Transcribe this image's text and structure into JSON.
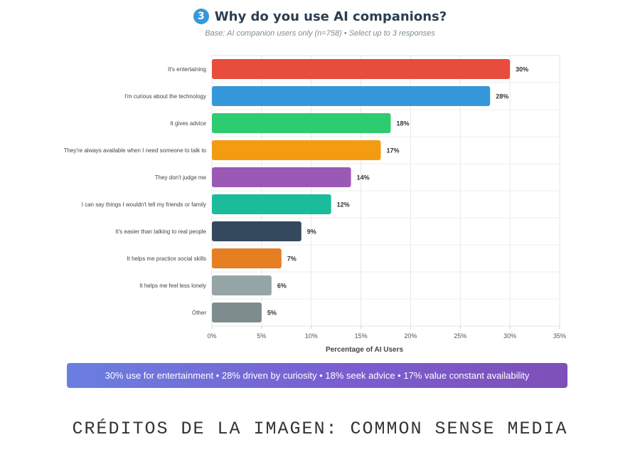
{
  "header": {
    "badge": "3",
    "title": "Why do you use AI companions?",
    "subtitle": "Base: AI companion users only (n=758) • Select up to 3 responses"
  },
  "chart_data": {
    "type": "bar",
    "orientation": "horizontal",
    "categories": [
      "It's entertaining",
      "I'm curious about the technology",
      "It gives advice",
      "They're always available when I need someone to talk to",
      "They don't judge me",
      "I can say things I wouldn't tell my friends or family",
      "It's easier than talking to real people",
      "It helps me practice social skills",
      "It helps me feel less lonely",
      "Other"
    ],
    "values": [
      30,
      28,
      18,
      17,
      14,
      12,
      9,
      7,
      6,
      5
    ],
    "value_labels": [
      "30%",
      "28%",
      "18%",
      "17%",
      "14%",
      "12%",
      "9%",
      "7%",
      "6%",
      "5%"
    ],
    "colors": [
      "#e74c3c",
      "#3498db",
      "#2ecc71",
      "#f39c12",
      "#9b59b6",
      "#1abc9c",
      "#34495e",
      "#e67e22",
      "#95a5a6",
      "#7f8c8d"
    ],
    "xlabel": "Percentage of AI Users",
    "xlim": [
      0,
      35
    ],
    "xticks": [
      0,
      5,
      10,
      15,
      20,
      25,
      30,
      35
    ],
    "xtick_labels": [
      "0%",
      "5%",
      "10%",
      "15%",
      "20%",
      "25%",
      "30%",
      "35%"
    ],
    "grid": true
  },
  "summary": "30% use for entertainment • 28% driven by curiosity • 18% seek advice • 17% value constant availability",
  "credits": "CRÉDITOS DE LA IMAGEN: COMMON SENSE MEDIA"
}
